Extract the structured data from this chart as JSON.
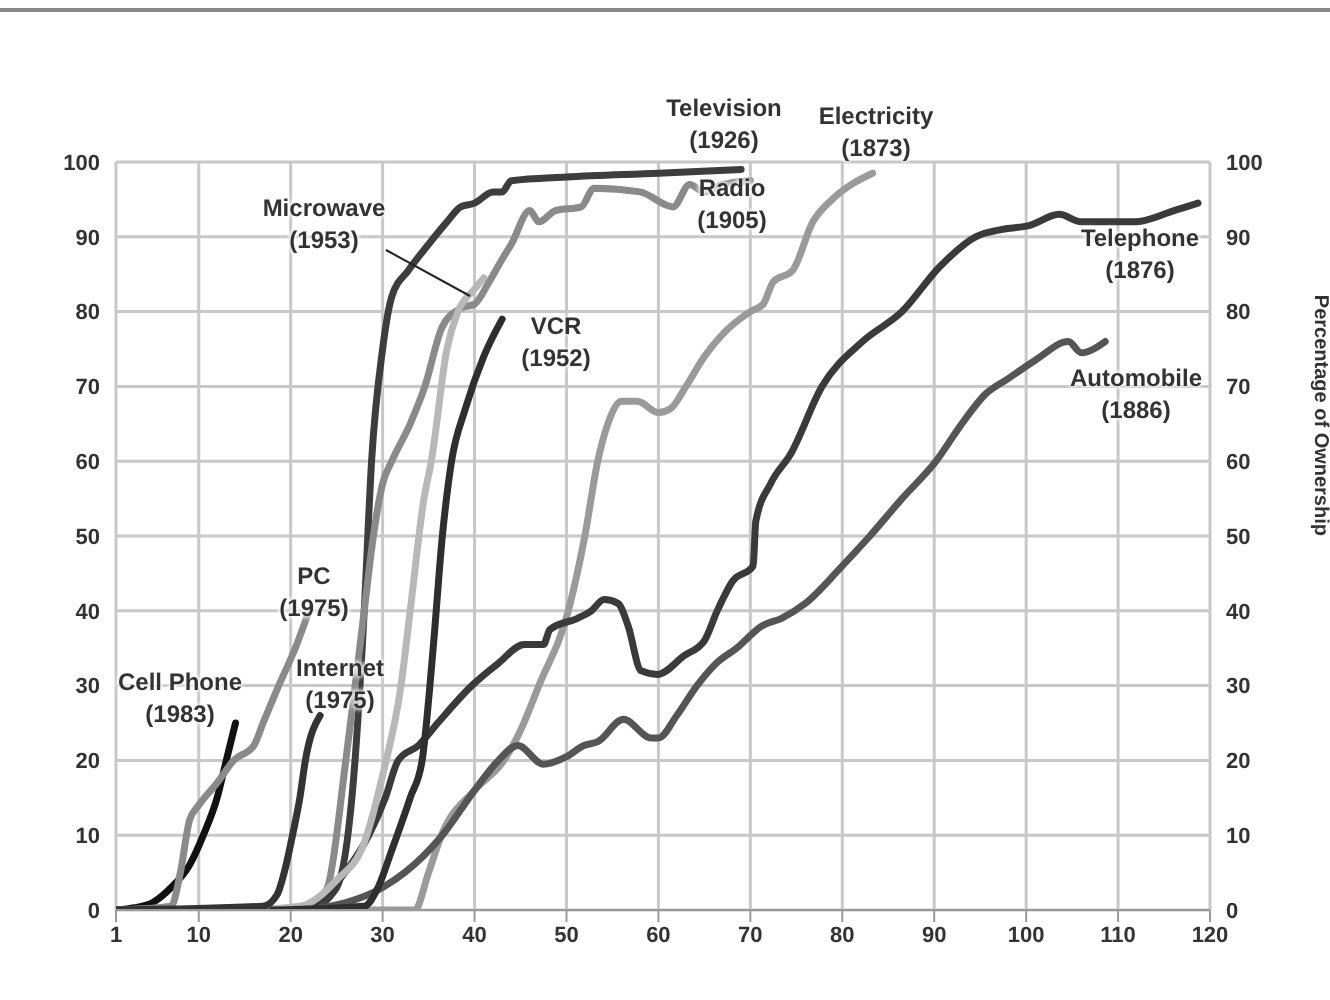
{
  "chart_data": {
    "type": "line",
    "y2label": "Percentage of Ownership",
    "xlim": [
      1,
      120
    ],
    "xticks": [
      1,
      10,
      20,
      30,
      40,
      50,
      60,
      70,
      80,
      90,
      100,
      110,
      120
    ],
    "ylim": [
      0,
      100
    ],
    "yticks": [
      0,
      10,
      20,
      30,
      40,
      50,
      60,
      70,
      80,
      90,
      100
    ],
    "y2lim": [
      0,
      100
    ],
    "y2ticks": [
      0,
      10,
      20,
      30,
      40,
      50,
      60,
      70,
      80,
      90,
      100
    ],
    "grid": true,
    "marker": "none",
    "line_style": "solid",
    "series": [
      {
        "name": "Television\n(1926)",
        "color": "#3d3d3d",
        "x": [
          22,
          25,
          27,
          28,
          28.8,
          30,
          31,
          32.8,
          35,
          37,
          38.5,
          40,
          42,
          43,
          44,
          50,
          60,
          69
        ],
        "values": [
          0,
          3,
          20,
          40,
          60,
          75,
          82,
          85.5,
          89,
          92,
          94,
          94.5,
          96,
          96,
          97.5,
          98,
          98.5,
          99
        ]
      },
      {
        "name": "Radio\n(1905)",
        "color": "#8a8a8a",
        "x": [
          22,
          24,
          26,
          28,
          29,
          30,
          31,
          33,
          34.6,
          36.5,
          38.6,
          40,
          41.6,
          43,
          44,
          46,
          47,
          48.8,
          51.6,
          53,
          58,
          61.6,
          63.4,
          65,
          67,
          70
        ],
        "values": [
          0,
          3,
          20,
          40,
          50,
          57,
          60,
          65,
          70,
          78,
          80.5,
          81,
          84,
          87,
          89,
          93.5,
          92,
          93.5,
          94,
          96.5,
          96,
          94,
          97,
          96,
          97,
          97.5
        ]
      },
      {
        "name": "Electricity\n(1873)",
        "color": "#9a9a9a",
        "x": [
          1,
          33.5,
          35,
          36.4,
          40,
          43.2,
          45,
          47,
          50.2,
          52,
          53.4,
          54.5,
          56,
          57.7,
          60,
          61.3,
          63,
          65,
          67,
          70,
          71.4,
          72.5,
          74.6,
          76.8,
          78.9,
          81,
          83.3
        ],
        "values": [
          0,
          0,
          5,
          10,
          16,
          20,
          24,
          30,
          40,
          50,
          60,
          65,
          68,
          68,
          66.5,
          67,
          70,
          74,
          77,
          80,
          81,
          84,
          85.5,
          92,
          95,
          97,
          98.5
        ]
      },
      {
        "name": "Telephone\n(1876)",
        "color": "#3a3a3a",
        "x": [
          1,
          21,
          25.9,
          28.5,
          30.3,
          31.7,
          33.9,
          36,
          39.7,
          42.6,
          45.4,
          47.5,
          48.2,
          51.2,
          52.7,
          54.1,
          55.6,
          56.7,
          58.1,
          59.9,
          62.8,
          65,
          66.4,
          68.1,
          70.3,
          70.6,
          72.2,
          74.4,
          77.8,
          82.2,
          86.5,
          90.6,
          94.5,
          97.4,
          100.3,
          103.6,
          106,
          111.8,
          116.1,
          118.7
        ],
        "values": [
          0,
          0,
          5,
          10,
          15,
          20,
          22,
          25,
          30,
          33,
          35.5,
          35.5,
          37.5,
          39,
          40,
          41.5,
          41,
          38,
          32,
          31.5,
          34,
          36,
          40,
          44,
          46,
          52,
          57,
          61,
          70,
          76,
          80,
          86,
          90,
          91,
          91.5,
          93,
          92,
          92,
          93.5,
          94.5
        ]
      },
      {
        "name": "Automobile\n(1886)",
        "color": "#555555",
        "x": [
          1,
          20,
          26,
          30,
          32.4,
          36.5,
          40,
          42.6,
          44.7,
          47.5,
          50,
          51.9,
          53.4,
          56.2,
          59.2,
          60,
          62,
          64.2,
          66.3,
          68.5,
          71.3,
          73.4,
          76,
          80,
          83,
          86.5,
          90.2,
          93,
          95.6,
          98,
          101,
          104.6,
          106,
          108.6
        ],
        "values": [
          0,
          0,
          1,
          3,
          5,
          10,
          16,
          20,
          22,
          19.5,
          20.5,
          22,
          22.5,
          25.5,
          23,
          23,
          26,
          30,
          33,
          35,
          38,
          39,
          41,
          46,
          50,
          55,
          60,
          65,
          69,
          71,
          73.5,
          76,
          74.5,
          76
        ]
      },
      {
        "name": "Microwave\n(1953)",
        "color": "#b8b8b8",
        "x": [
          15,
          21,
          25,
          28,
          30,
          32,
          33,
          34.5,
          35.3,
          37,
          38.2,
          40,
          41
        ],
        "values": [
          0,
          0.5,
          4,
          9,
          18,
          30,
          40,
          55,
          60,
          75,
          80,
          83,
          84.5
        ]
      },
      {
        "name": "VCR\n(1952)",
        "color": "#2e2e2e",
        "x": [
          18,
          28,
          29.5,
          31,
          33,
          34.3,
          35.5,
          36.5,
          37.5,
          39,
          41,
          43
        ],
        "values": [
          0,
          0.5,
          3,
          8,
          15,
          20,
          35,
          50,
          60,
          67,
          74,
          79
        ]
      },
      {
        "name": "Cell Phone\n(1983)",
        "color": "#111111",
        "x": [
          1,
          3,
          5,
          7,
          9,
          10.5,
          12,
          13,
          14
        ],
        "values": [
          0,
          0.3,
          1,
          3,
          6,
          10,
          15,
          20,
          25
        ]
      },
      {
        "name": "PC\n(1975)",
        "color": "#8a8a8a",
        "x": [
          1,
          7,
          8,
          9,
          10,
          12,
          13.8,
          16,
          17,
          18.7,
          20.5,
          22
        ],
        "values": [
          0,
          0.5,
          5,
          12,
          14,
          17,
          20,
          22,
          25,
          30,
          35,
          40
        ]
      },
      {
        "name": "Internet\n(1975)",
        "color": "#333333",
        "x": [
          1,
          17,
          18.5,
          19.5,
          20.2,
          21,
          21.6,
          23.2
        ],
        "values": [
          0,
          0.5,
          2,
          6,
          10,
          15,
          20,
          26
        ]
      }
    ]
  }
}
